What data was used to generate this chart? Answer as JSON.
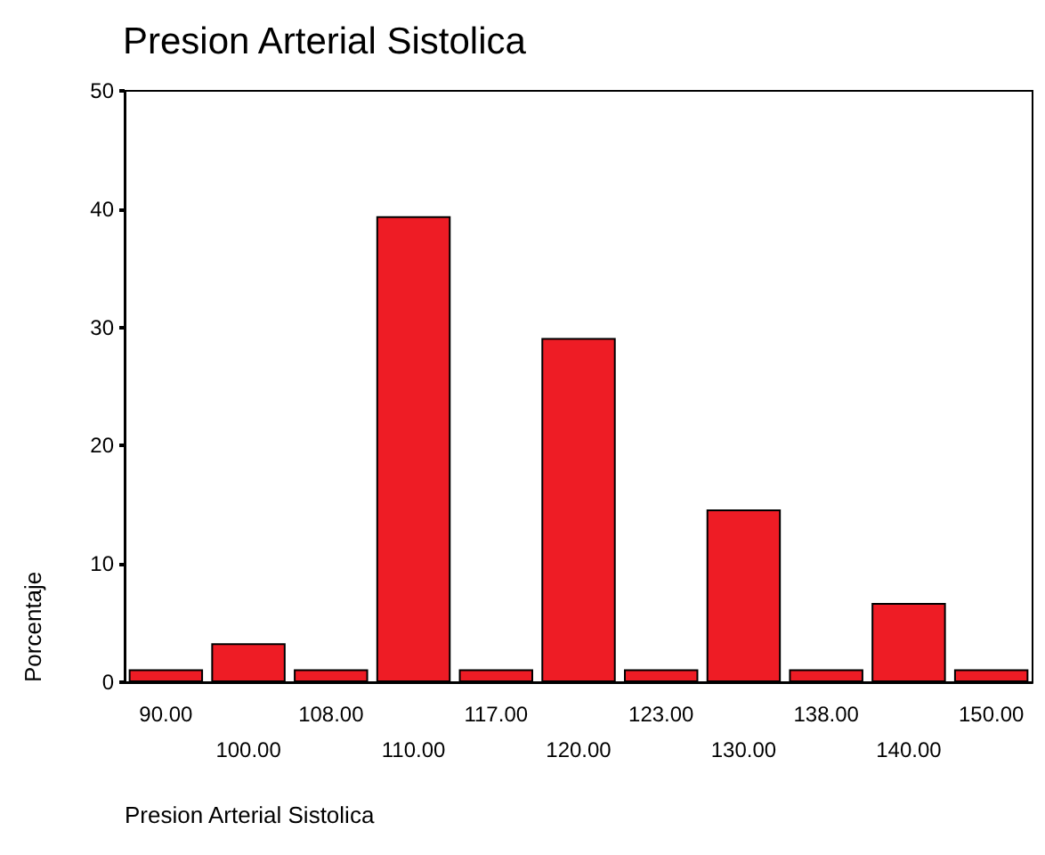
{
  "chart_data": {
    "type": "bar",
    "title": "Presion Arterial Sistolica",
    "xlabel": "Presion Arterial Sistolica",
    "ylabel": "Porcentaje",
    "categories": [
      "90.00",
      "100.00",
      "108.00",
      "110.00",
      "117.00",
      "120.00",
      "123.00",
      "130.00",
      "138.00",
      "140.00",
      "150.00"
    ],
    "values": [
      1.1,
      3.3,
      1.1,
      39.4,
      1.1,
      29.1,
      1.1,
      14.6,
      1.1,
      6.7,
      1.1
    ],
    "color": "#ee1c25",
    "ylim": [
      0,
      50
    ],
    "yticks": [
      0,
      10,
      20,
      30,
      40,
      50
    ],
    "grid": false
  }
}
